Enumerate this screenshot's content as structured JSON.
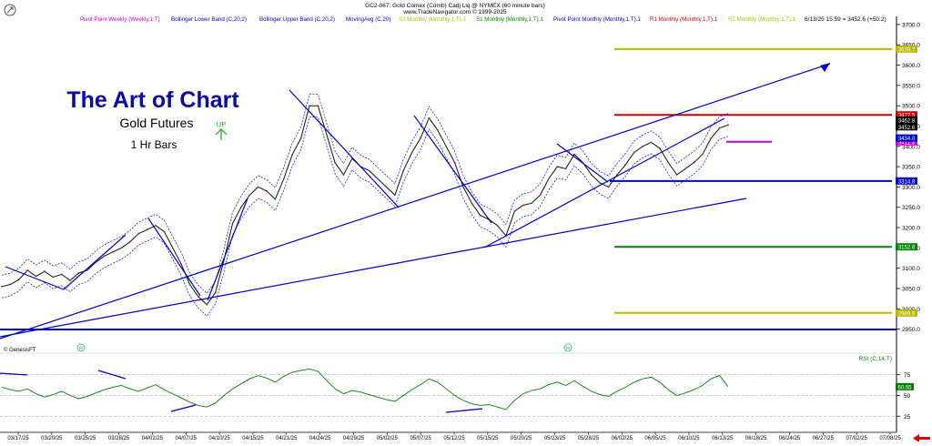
{
  "header": {
    "line1": "GC2-067:  Gold Comex (Comb) Cadj Liq @ NYMEX  (60 minute bars)",
    "line2": "www.TradeNavigator.com © 1999-2025",
    "stamp": "6/13/25 15:59 = 3452.6 (+50.2)"
  },
  "legend": [
    {
      "label": "Pivot Point Weekly (Weekly,1,T)",
      "color": "#cc00cc"
    },
    {
      "label": "Bollinger Lower Band (C,20,2)",
      "color": "#0000cc"
    },
    {
      "label": "Bollinger Upper Band (C,20,2)",
      "color": "#0000cc"
    },
    {
      "label": "MovingAvg (C,20)",
      "color": "#0000cc"
    },
    {
      "label": "S2 Monthly (Monthly,1,T).1",
      "color": "#b8b800"
    },
    {
      "label": "S1 Monthly (Monthly,1,T).1",
      "color": "#008800"
    },
    {
      "label": "Pivot Point Monthly (Monthly,1,T).1",
      "color": "#0000cc"
    },
    {
      "label": "R1 Monthly (Monthly,1,T).1",
      "color": "#cc0000"
    },
    {
      "label": "R2 Monthly (Monthly,1,T).1",
      "color": "#b8b800"
    }
  ],
  "brand": {
    "title": "The Art of Chart",
    "subtitle": "Gold Futures",
    "bars": "1 Hr Bars",
    "up_label": "UP"
  },
  "footer": {
    "source": "© GenesisFT",
    "marker": "R"
  },
  "rsi": {
    "label": "RSI (C,14,T)"
  },
  "colors": {
    "price_line": "#111111",
    "axis": "#000000",
    "trend": "#0000cc",
    "rsi": "#008000",
    "arrow": "#dd0000"
  },
  "chart_data": [
    {
      "type": "line",
      "title": "",
      "ylim": [
        2920,
        3720
      ],
      "y_ticks": [
        2950,
        3000,
        3050,
        3100,
        3150,
        3200,
        3250,
        3300,
        3350,
        3400,
        3450,
        3500,
        3550,
        3600,
        3650,
        3700
      ],
      "x_ticks": [
        "03/17/25",
        "03/20/25",
        "03/25/25",
        "03/28/25",
        "04/02/25",
        "04/07/25",
        "04/10/25",
        "04/15/25",
        "04/21/25",
        "04/24/25",
        "04/29/25",
        "05/02/25",
        "05/07/25",
        "05/12/25",
        "05/15/25",
        "05/20/25",
        "05/23/25",
        "05/28/25",
        "06/02/25",
        "06/05/25",
        "06/10/25",
        "06/13/25",
        "06/18/25",
        "06/24/25",
        "06/27/25",
        "07/02/25",
        "07/08/25"
      ],
      "series": [
        {
          "values": [
            3055,
            3060,
            3072,
            3095,
            3080,
            3092,
            3078,
            3085,
            3070,
            3088,
            3095,
            3115,
            3130,
            3140,
            3150,
            3165,
            3185,
            3195,
            3205,
            3190,
            3150,
            3110,
            3060,
            3030,
            3010,
            3040,
            3120,
            3210,
            3250,
            3280,
            3300,
            3290,
            3270,
            3320,
            3380,
            3420,
            3500,
            3500,
            3430,
            3360,
            3330,
            3370,
            3350,
            3340,
            3320,
            3300,
            3280,
            3340,
            3385,
            3420,
            3470,
            3440,
            3400,
            3360,
            3300,
            3260,
            3230,
            3220,
            3205,
            3180,
            3240,
            3255,
            3260,
            3280,
            3320,
            3350,
            3345,
            3380,
            3360,
            3330,
            3310,
            3300,
            3330,
            3355,
            3385,
            3400,
            3410,
            3395,
            3360,
            3330,
            3345,
            3360,
            3380,
            3420,
            3445,
            3452.6
          ]
        }
      ],
      "levels": [
        {
          "label": "3639.7",
          "value": 3639.7,
          "color": "#b8b800"
        },
        {
          "label": "3477.5",
          "value": 3477.5,
          "color": "#cc0000"
        },
        {
          "label": "3411.3",
          "value": 3411.3,
          "color": "#cc00cc"
        },
        {
          "label": "3314.8",
          "value": 3314.8,
          "color": "#0000cc"
        },
        {
          "label": "3152.6",
          "value": 3152.6,
          "color": "#008800"
        },
        {
          "label": "2989.9",
          "value": 2989.9,
          "color": "#b8b800"
        },
        {
          "label": "2949",
          "value": 2949,
          "color": "#0000cc"
        }
      ],
      "last_labels": [
        {
          "label": "3462.8",
          "value": 3462.8,
          "color": "#000000"
        },
        {
          "label": "3452.6",
          "value": 3452.6,
          "color": "#000000"
        },
        {
          "label": "3434.0",
          "value": 3434.0,
          "color": "#0000cc"
        }
      ]
    },
    {
      "type": "line",
      "title": "RSI (C,14,T)",
      "ylim": [
        22,
        90
      ],
      "y_ticks": [
        25,
        50,
        75
      ],
      "last_value_label": "60.55",
      "series": [
        {
          "name": "RSI (C,14,T)",
          "values": [
            60,
            57,
            55,
            58,
            52,
            48,
            51,
            55,
            50,
            46,
            49,
            53,
            57,
            60,
            62,
            58,
            55,
            59,
            63,
            57,
            52,
            47,
            42,
            38,
            36,
            41,
            50,
            58,
            64,
            70,
            74,
            71,
            66,
            73,
            78,
            80,
            82,
            79,
            68,
            58,
            52,
            56,
            54,
            51,
            48,
            45,
            43,
            50,
            57,
            63,
            70,
            66,
            58,
            50,
            44,
            40,
            38,
            39,
            36,
            33,
            44,
            52,
            56,
            58,
            63,
            66,
            62,
            68,
            61,
            55,
            51,
            49,
            55,
            60,
            66,
            70,
            72,
            66,
            57,
            50,
            53,
            57,
            62,
            70,
            74,
            60.55
          ]
        }
      ]
    }
  ]
}
